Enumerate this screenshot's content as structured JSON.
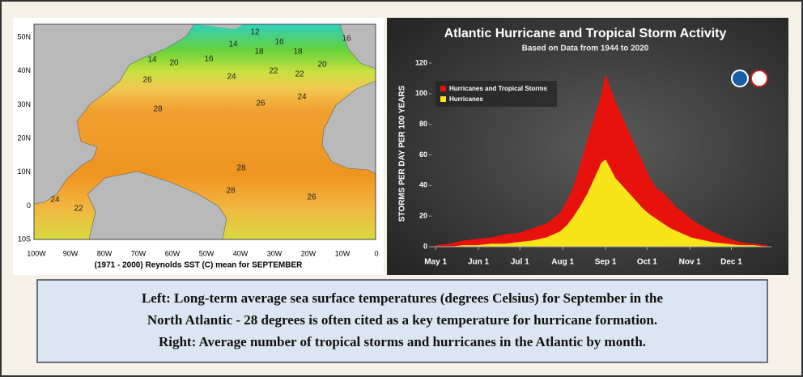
{
  "map": {
    "lat_labels": [
      "50N",
      "40N",
      "30N",
      "20N",
      "10N",
      "0",
      "10S"
    ],
    "lon_labels": [
      "100W",
      "90W",
      "80W",
      "70W",
      "60W",
      "50W",
      "40W",
      "30W",
      "20W",
      "10W",
      "0"
    ],
    "caption": "(1971 - 2000) Reynolds SST (C) mean for SEPTEMBER",
    "contour_labels": [
      12,
      16,
      16,
      14,
      18,
      18,
      20,
      16,
      14,
      20,
      26,
      24,
      22,
      22,
      28,
      26,
      24,
      28,
      28,
      26,
      24,
      22
    ]
  },
  "chart_data": {
    "type": "area",
    "title": "Atlantic Hurricane and Tropical Storm Activity",
    "subtitle": "Based on Data from 1944 to 2020",
    "ylabel": "STORMS PER DAY PER 100 YEARS",
    "x": [
      0,
      10,
      20,
      30,
      40,
      50,
      60,
      70,
      80,
      90,
      95,
      100,
      105,
      110,
      115,
      120,
      123,
      126,
      130,
      135,
      140,
      145,
      150,
      155,
      160,
      165,
      170,
      175,
      180,
      185,
      190,
      200,
      210,
      220,
      230,
      240
    ],
    "series": [
      {
        "name": "Hurricanes and Tropical Storms",
        "color": "#e8120c",
        "values": [
          1,
          2,
          4,
          5,
          6,
          8,
          9,
          12,
          15,
          22,
          30,
          40,
          55,
          70,
          85,
          100,
          113,
          105,
          95,
          85,
          75,
          65,
          55,
          45,
          38,
          35,
          30,
          25,
          22,
          18,
          15,
          10,
          6,
          3,
          2,
          1
        ]
      },
      {
        "name": "Hurricanes",
        "color": "#f7e51a",
        "values": [
          0,
          0,
          1,
          1,
          2,
          2,
          3,
          4,
          6,
          10,
          14,
          20,
          27,
          35,
          45,
          55,
          57,
          52,
          45,
          40,
          35,
          30,
          25,
          21,
          18,
          15,
          12,
          10,
          8,
          6,
          5,
          3,
          2,
          1,
          1,
          0
        ]
      }
    ],
    "xlim": [
      -3,
      243
    ],
    "xticks": [
      {
        "value": 0,
        "label": "May 1"
      },
      {
        "value": 31,
        "label": "Jun 1"
      },
      {
        "value": 61,
        "label": "Jul 1"
      },
      {
        "value": 92,
        "label": "Aug 1"
      },
      {
        "value": 123,
        "label": "Sep 1"
      },
      {
        "value": 153,
        "label": "Oct 1"
      },
      {
        "value": 184,
        "label": "Nov 1"
      },
      {
        "value": 214,
        "label": "Dec 1"
      }
    ],
    "ylim": [
      0,
      120
    ],
    "yticks": [
      0,
      20,
      40,
      60,
      80,
      100,
      120
    ]
  },
  "caption_lines": [
    "Left: Long-term average sea surface temperatures (degrees Celsius) for September in the",
    "North Atlantic - 28 degrees is often cited as a key temperature for hurricane formation.",
    "Right: Average number of tropical storms and hurricanes in the Atlantic by month."
  ]
}
